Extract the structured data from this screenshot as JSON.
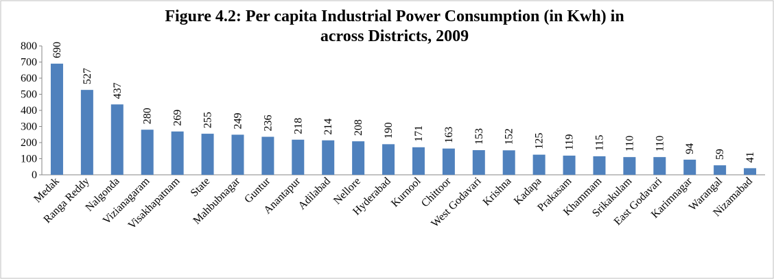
{
  "chart_data": {
    "type": "bar",
    "title": [
      "Figure 4.2: Per capita Industrial Power Consumption (in Kwh) in",
      "across Districts, 2009"
    ],
    "categories": [
      "Medak",
      "Ranga Reddy",
      "Nalgonda",
      "Vizianagaram",
      "Visakhapatnam",
      "State",
      "Mahbubnagar",
      "Guntur",
      "Anantapur",
      "Adilabad",
      "Nellore",
      "Hyderabad",
      "Kurnool",
      "Chittoor",
      "West Godavari",
      "Krishna",
      "Kadapa",
      "Prakasam",
      "Khammam",
      "Srikakulam",
      "East Godavari",
      "Karimnagar",
      "Warangal",
      "Nizamabad"
    ],
    "values": [
      690,
      527,
      437,
      280,
      269,
      255,
      249,
      236,
      218,
      214,
      208,
      190,
      171,
      163,
      153,
      152,
      125,
      119,
      115,
      110,
      110,
      94,
      59,
      41
    ],
    "color": "#4f81bd",
    "ylim": [
      0,
      800
    ],
    "yticks": [
      0,
      100,
      200,
      300,
      400,
      500,
      600,
      700,
      800
    ],
    "grid": false
  }
}
